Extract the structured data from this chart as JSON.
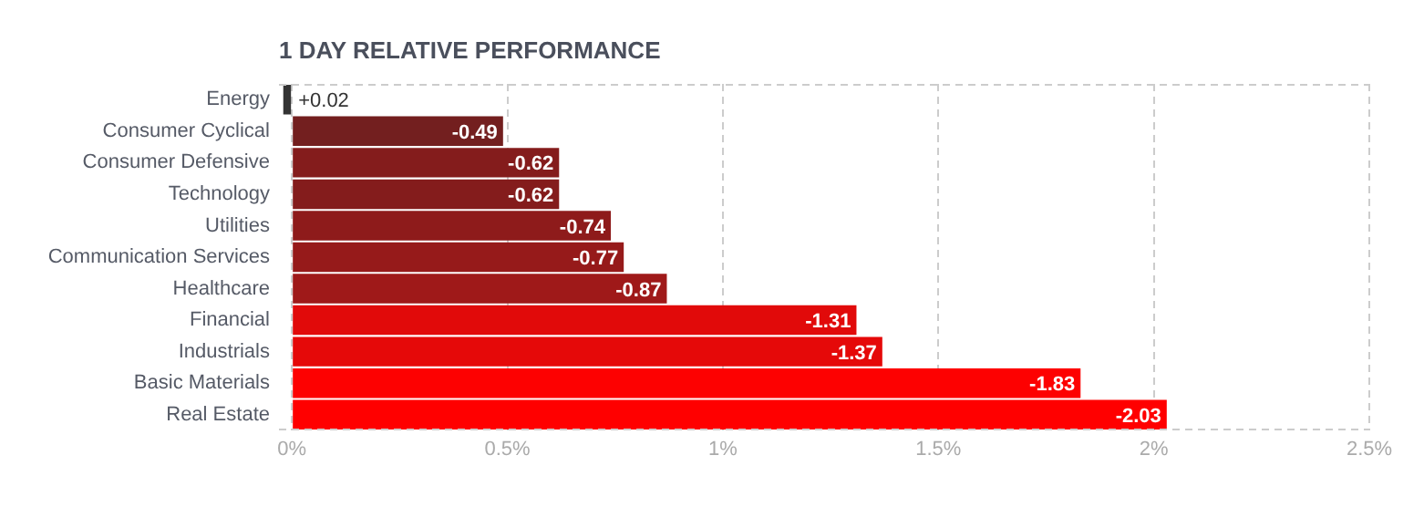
{
  "chart_data": {
    "type": "bar",
    "orientation": "horizontal",
    "title": "1 DAY RELATIVE PERFORMANCE",
    "categories": [
      "Energy",
      "Consumer Cyclical",
      "Consumer Defensive",
      "Technology",
      "Utilities",
      "Communication Services",
      "Healthcare",
      "Financial",
      "Industrials",
      "Basic Materials",
      "Real Estate"
    ],
    "values": [
      0.02,
      -0.49,
      -0.62,
      -0.62,
      -0.74,
      -0.77,
      -0.87,
      -1.31,
      -1.37,
      -1.83,
      -2.03
    ],
    "value_labels": [
      "+0.02",
      "-0.49",
      "-0.62",
      "-0.62",
      "-0.74",
      "-0.77",
      "-0.87",
      "-1.31",
      "-1.37",
      "-1.83",
      "-2.03"
    ],
    "colors": [
      "#333333",
      "#731f1f",
      "#841c1c",
      "#841c1c",
      "#8e1b1b",
      "#961a1a",
      "#9f1919",
      "#e10a0a",
      "#e50909",
      "#fd0101",
      "#ff0000"
    ],
    "xlim": [
      0.03,
      -2.5
    ],
    "xticks": [
      {
        "value": 0,
        "label": "0%"
      },
      {
        "value": -0.5,
        "label": "0.5%"
      },
      {
        "value": -1,
        "label": "1%"
      },
      {
        "value": -1.5,
        "label": "1.5%"
      },
      {
        "value": -2,
        "label": "2%"
      },
      {
        "value": -2.5,
        "label": "2.5%"
      }
    ],
    "grid": "x",
    "legend": false
  }
}
